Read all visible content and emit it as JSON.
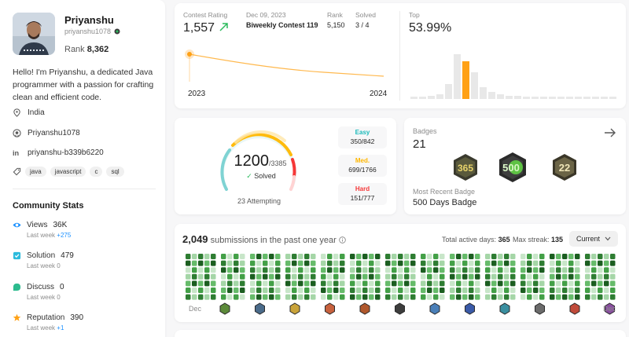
{
  "profile": {
    "name": "Priyanshu",
    "username": "priyanshu1078",
    "rank_label": "Rank",
    "rank_value": "8,362",
    "bio": "Hello! I'm Priyanshu, a dedicated Java programmer with a passion for crafting clean and efficient code.",
    "location": "India",
    "github": "Priyanshu1078",
    "linkedin": "priyanshu-b339b6220",
    "tags": [
      "java",
      "javascript",
      "c",
      "sql"
    ]
  },
  "community": {
    "title": "Community Stats",
    "stats": [
      {
        "label": "Views",
        "value": "36K",
        "sub_label": "Last week",
        "sub_value": "+275",
        "color": "#1a90ff"
      },
      {
        "label": "Solution",
        "value": "479",
        "sub_label": "Last week",
        "sub_value": "0",
        "color": "#2cbbdd"
      },
      {
        "label": "Discuss",
        "value": "0",
        "sub_label": "Last week",
        "sub_value": "0",
        "color": "#2cbb8e"
      },
      {
        "label": "Reputation",
        "value": "390",
        "sub_label": "Last week",
        "sub_value": "+1",
        "color": "#ffa116"
      }
    ]
  },
  "contest": {
    "rating_label": "Contest Rating",
    "rating_value": "1,557",
    "date": "Dec 09, 2023",
    "contest_name": "Biweekly Contest 119",
    "rank_label": "Rank",
    "rank_value": "5,150",
    "solved_label": "Solved",
    "solved_value": "3 / 4",
    "year_start": "2023",
    "year_end": "2024",
    "top_label": "Top",
    "top_value": "53.99%",
    "accent": "#ffa116"
  },
  "solved": {
    "solved_count": "1200",
    "total": "/3385",
    "solved_label": "Solved",
    "attempting": "23 Attempting",
    "difficulties": [
      {
        "name": "Easy",
        "value": "350/842",
        "color": "#1cbaba"
      },
      {
        "name": "Med.",
        "value": "699/1766",
        "color": "#ffb700"
      },
      {
        "name": "Hard",
        "value": "151/777",
        "color": "#f63737"
      }
    ]
  },
  "badges": {
    "title": "Badges",
    "count": "21",
    "recent_label": "Most Recent Badge",
    "recent_name": "500 Days Badge"
  },
  "submissions": {
    "count": "2,049",
    "text": "submissions in the past one year",
    "active_label": "Total active days:",
    "active_value": "365",
    "streak_label": "Max streak:",
    "streak_value": "135",
    "dropdown": "Current",
    "month_start": "Dec",
    "month_end": "Dec"
  }
}
